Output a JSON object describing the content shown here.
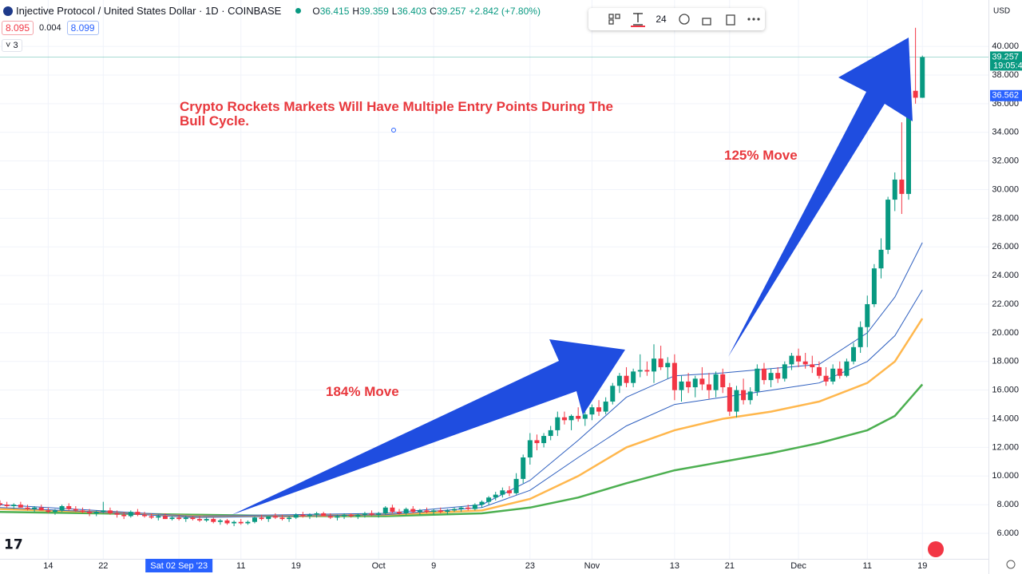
{
  "header": {
    "symbol": "Injective Protocol / United States Dollar · 1D · COINBASE",
    "readout": [
      "O",
      "36.415",
      "H",
      "39.359",
      "L",
      "36.403",
      "C",
      "39.257",
      "+2.842 (+7.80%)"
    ],
    "indicator": [
      "8.095",
      "0.004",
      "8.099"
    ],
    "collapsed_count": "3"
  },
  "toolbar": {
    "font_size": "24"
  },
  "chart_data": {
    "type": "candlestick",
    "currency": "USD",
    "annotations": [
      "Crypto Rockets Markets Will Have Multiple Entry Points During The Bull Cycle.",
      "184% Move",
      "125% Move"
    ],
    "up_color": "#089981",
    "down_color": "#f23645",
    "grid": true,
    "xlim": [
      0,
      143.6
    ],
    "ylim": [
      4.22,
      43.24
    ],
    "yticks": [
      {
        "value": 6,
        "label": "6.000"
      },
      {
        "value": 8,
        "label": "8.000"
      },
      {
        "value": 10,
        "label": "10.000"
      },
      {
        "value": 12,
        "label": "12.000"
      },
      {
        "value": 14,
        "label": "14.000"
      },
      {
        "value": 16,
        "label": "16.000"
      },
      {
        "value": 18,
        "label": "18.000"
      },
      {
        "value": 20,
        "label": "20.000"
      },
      {
        "value": 22,
        "label": "22.000"
      },
      {
        "value": 24,
        "label": "24.000"
      },
      {
        "value": 26,
        "label": "26.000"
      },
      {
        "value": 28,
        "label": "28.000"
      },
      {
        "value": 30,
        "label": "30.000"
      },
      {
        "value": 32,
        "label": "32.000"
      },
      {
        "value": 34,
        "label": "34.000"
      },
      {
        "value": 36,
        "label": "36.000"
      },
      {
        "value": 38,
        "label": "38.000"
      },
      {
        "value": 40,
        "label": "40.000"
      }
    ],
    "xticks": [
      {
        "value": 7,
        "label": "14"
      },
      {
        "value": 15,
        "label": "22"
      },
      {
        "value": 26,
        "label": "Sat 02 Sep '23"
      },
      {
        "value": 35,
        "label": "11"
      },
      {
        "value": 43,
        "label": "19"
      },
      {
        "value": 55,
        "label": "Oct"
      },
      {
        "value": 63,
        "label": "9"
      },
      {
        "value": 77,
        "label": "23"
      },
      {
        "value": 86,
        "label": "Nov"
      },
      {
        "value": 98,
        "label": "13"
      },
      {
        "value": 106,
        "label": "21"
      },
      {
        "value": 116,
        "label": "Dec"
      },
      {
        "value": 126,
        "label": "11"
      },
      {
        "value": 134,
        "label": "19"
      }
    ],
    "last_price": 39.257,
    "countdown": "19:05:4",
    "marked_price": 36.562,
    "ohlc": [
      [
        8.1,
        8.3,
        7.9,
        8.0
      ],
      [
        8.0,
        8.2,
        7.8,
        7.9
      ],
      [
        7.9,
        8.1,
        7.7,
        8.0
      ],
      [
        8.0,
        8.2,
        7.8,
        7.8
      ],
      [
        7.8,
        8.0,
        7.6,
        7.7
      ],
      [
        7.7,
        7.9,
        7.5,
        7.8
      ],
      [
        7.8,
        8.0,
        7.6,
        7.6
      ],
      [
        7.6,
        7.8,
        7.4,
        7.5
      ],
      [
        7.5,
        7.7,
        7.3,
        7.6
      ],
      [
        7.6,
        8.0,
        7.5,
        7.9
      ],
      [
        7.9,
        8.1,
        7.6,
        7.7
      ],
      [
        7.7,
        7.9,
        7.5,
        7.6
      ],
      [
        7.6,
        7.8,
        7.4,
        7.5
      ],
      [
        7.5,
        7.7,
        7.2,
        7.4
      ],
      [
        7.4,
        7.6,
        7.2,
        7.5
      ],
      [
        7.5,
        8.2,
        7.4,
        7.6
      ],
      [
        7.6,
        7.8,
        7.3,
        7.4
      ],
      [
        7.4,
        7.6,
        7.1,
        7.3
      ],
      [
        7.3,
        7.5,
        7.0,
        7.2
      ],
      [
        7.2,
        7.6,
        7.1,
        7.5
      ],
      [
        7.5,
        7.7,
        7.2,
        7.3
      ],
      [
        7.3,
        7.5,
        7.1,
        7.2
      ],
      [
        7.2,
        7.4,
        7.0,
        7.1
      ],
      [
        7.1,
        7.3,
        6.9,
        7.2
      ],
      [
        7.2,
        7.4,
        7.0,
        7.0
      ],
      [
        7.0,
        7.2,
        6.9,
        7.1
      ],
      [
        7.1,
        7.3,
        6.9,
        7.0
      ],
      [
        7.0,
        7.2,
        6.8,
        7.1
      ],
      [
        7.1,
        7.2,
        6.9,
        7.0
      ],
      [
        7.0,
        7.2,
        6.8,
        6.9
      ],
      [
        6.9,
        7.1,
        6.8,
        7.0
      ],
      [
        7.0,
        7.1,
        6.7,
        6.8
      ],
      [
        6.8,
        7.0,
        6.6,
        6.9
      ],
      [
        6.9,
        7.0,
        6.6,
        6.7
      ],
      [
        6.7,
        6.9,
        6.5,
        6.8
      ],
      [
        6.8,
        7.0,
        6.6,
        6.7
      ],
      [
        6.7,
        6.9,
        6.6,
        6.8
      ],
      [
        6.8,
        7.2,
        6.7,
        7.1
      ],
      [
        7.1,
        7.3,
        6.9,
        7.0
      ],
      [
        7.0,
        7.2,
        6.8,
        7.2
      ],
      [
        7.2,
        7.4,
        7.0,
        7.1
      ],
      [
        7.1,
        7.3,
        6.9,
        7.0
      ],
      [
        7.0,
        7.2,
        6.8,
        7.1
      ],
      [
        7.1,
        7.4,
        7.0,
        7.3
      ],
      [
        7.3,
        7.5,
        7.1,
        7.2
      ],
      [
        7.2,
        7.4,
        7.0,
        7.3
      ],
      [
        7.3,
        7.5,
        7.1,
        7.4
      ],
      [
        7.4,
        7.5,
        7.2,
        7.2
      ],
      [
        7.2,
        7.4,
        7.0,
        7.1
      ],
      [
        7.1,
        7.3,
        6.9,
        7.2
      ],
      [
        7.2,
        7.4,
        7.0,
        7.3
      ],
      [
        7.3,
        7.4,
        7.1,
        7.2
      ],
      [
        7.2,
        7.4,
        7.0,
        7.3
      ],
      [
        7.3,
        7.5,
        7.1,
        7.4
      ],
      [
        7.4,
        7.6,
        7.2,
        7.3
      ],
      [
        7.3,
        7.5,
        7.1,
        7.4
      ],
      [
        7.4,
        7.9,
        7.3,
        7.8
      ],
      [
        7.8,
        8.0,
        7.4,
        7.5
      ],
      [
        7.5,
        7.7,
        7.3,
        7.4
      ],
      [
        7.4,
        7.8,
        7.3,
        7.7
      ],
      [
        7.7,
        7.9,
        7.4,
        7.5
      ],
      [
        7.5,
        7.7,
        7.3,
        7.6
      ],
      [
        7.6,
        7.8,
        7.4,
        7.5
      ],
      [
        7.5,
        7.7,
        7.3,
        7.6
      ],
      [
        7.6,
        7.8,
        7.4,
        7.5
      ],
      [
        7.5,
        7.7,
        7.3,
        7.6
      ],
      [
        7.6,
        7.8,
        7.5,
        7.7
      ],
      [
        7.7,
        7.9,
        7.5,
        7.8
      ],
      [
        7.8,
        8.0,
        7.6,
        7.7
      ],
      [
        7.7,
        8.1,
        7.6,
        8.0
      ],
      [
        8.0,
        8.3,
        7.8,
        8.2
      ],
      [
        8.2,
        8.6,
        8.0,
        8.5
      ],
      [
        8.5,
        8.9,
        8.3,
        8.7
      ],
      [
        8.7,
        9.2,
        8.5,
        9.0
      ],
      [
        9.0,
        9.3,
        8.6,
        8.8
      ],
      [
        8.8,
        10.2,
        8.7,
        9.8
      ],
      [
        9.8,
        11.5,
        9.5,
        11.3
      ],
      [
        11.3,
        13.0,
        10.8,
        12.5
      ],
      [
        12.5,
        12.9,
        11.8,
        12.3
      ],
      [
        12.3,
        13.0,
        12.0,
        12.8
      ],
      [
        12.8,
        13.5,
        12.5,
        13.2
      ],
      [
        13.2,
        14.5,
        12.8,
        14.1
      ],
      [
        14.1,
        14.5,
        13.6,
        13.9
      ],
      [
        13.9,
        14.3,
        13.2,
        14.2
      ],
      [
        14.2,
        14.8,
        13.8,
        14.0
      ],
      [
        14.0,
        14.5,
        13.5,
        14.3
      ],
      [
        14.3,
        15.0,
        13.9,
        14.8
      ],
      [
        14.8,
        15.3,
        14.2,
        14.5
      ],
      [
        14.5,
        15.5,
        14.3,
        15.2
      ],
      [
        15.2,
        16.5,
        15.0,
        16.3
      ],
      [
        16.3,
        17.2,
        15.8,
        17.0
      ],
      [
        17.0,
        17.6,
        16.2,
        16.5
      ],
      [
        16.5,
        17.5,
        16.2,
        17.3
      ],
      [
        17.3,
        18.5,
        16.9,
        17.4
      ],
      [
        17.4,
        18.0,
        17.0,
        17.3
      ],
      [
        17.3,
        19.2,
        16.5,
        18.2
      ],
      [
        18.2,
        19.1,
        17.4,
        17.6
      ],
      [
        17.6,
        18.3,
        16.8,
        17.9
      ],
      [
        17.9,
        18.5,
        15.3,
        16.0
      ],
      [
        16.0,
        17.0,
        15.2,
        16.6
      ],
      [
        16.6,
        17.2,
        15.8,
        16.2
      ],
      [
        16.2,
        17.0,
        15.5,
        16.8
      ],
      [
        16.8,
        17.6,
        16.0,
        16.4
      ],
      [
        16.4,
        17.2,
        15.4,
        16.0
      ],
      [
        16.0,
        17.3,
        15.5,
        17.1
      ],
      [
        17.1,
        17.5,
        15.8,
        16.2
      ],
      [
        16.2,
        16.5,
        14.2,
        14.5
      ],
      [
        14.5,
        16.3,
        14.1,
        16.0
      ],
      [
        16.0,
        16.8,
        15.0,
        15.3
      ],
      [
        15.3,
        16.2,
        15.0,
        15.9
      ],
      [
        15.9,
        17.8,
        15.6,
        17.5
      ],
      [
        17.5,
        17.9,
        16.4,
        16.7
      ],
      [
        16.7,
        17.5,
        16.2,
        17.2
      ],
      [
        17.2,
        17.6,
        16.5,
        16.8
      ],
      [
        16.8,
        18.0,
        16.6,
        17.8
      ],
      [
        17.8,
        18.6,
        17.4,
        18.4
      ],
      [
        18.4,
        18.9,
        17.6,
        18.0
      ],
      [
        18.0,
        18.6,
        17.5,
        17.8
      ],
      [
        17.8,
        18.4,
        17.2,
        17.6
      ],
      [
        17.6,
        18.0,
        16.8,
        17.0
      ],
      [
        17.0,
        17.6,
        16.3,
        16.6
      ],
      [
        16.6,
        17.8,
        16.4,
        17.5
      ],
      [
        17.5,
        18.0,
        16.8,
        17.0
      ],
      [
        17.0,
        18.2,
        16.9,
        18.0
      ],
      [
        18.0,
        19.3,
        17.8,
        19.0
      ],
      [
        19.0,
        20.8,
        18.6,
        20.4
      ],
      [
        20.4,
        22.6,
        19.0,
        22.0
      ],
      [
        22.0,
        24.8,
        21.8,
        24.5
      ],
      [
        24.5,
        26.6,
        23.8,
        25.8
      ],
      [
        25.8,
        29.5,
        25.5,
        29.3
      ],
      [
        29.3,
        31.2,
        28.5,
        30.7
      ],
      [
        30.7,
        34.7,
        28.3,
        29.7
      ],
      [
        29.7,
        37.3,
        29.3,
        36.9
      ],
      [
        36.9,
        41.3,
        36.0,
        36.415
      ],
      [
        36.415,
        39.359,
        36.403,
        39.257
      ]
    ],
    "x": [
      0,
      14,
      28,
      42,
      56,
      70,
      77,
      84,
      91,
      98,
      105,
      112,
      119,
      126,
      130,
      134
    ],
    "series": [
      {
        "color": "#4caf50",
        "values": [
          7.5,
          7.4,
          7.3,
          7.2,
          7.2,
          7.4,
          7.8,
          8.5,
          9.5,
          10.4,
          11.0,
          11.6,
          12.3,
          13.2,
          14.2,
          16.4
        ]
      },
      {
        "color": "#ffb74d",
        "values": [
          7.7,
          7.5,
          7.2,
          7.2,
          7.3,
          7.6,
          8.4,
          10.0,
          12.0,
          13.2,
          14.0,
          14.5,
          15.2,
          16.5,
          18.0,
          21.0
        ]
      },
      {
        "color": "#2e5fbf",
        "values": [
          7.8,
          7.5,
          7.1,
          7.2,
          7.3,
          7.8,
          9.0,
          11.3,
          13.5,
          15.0,
          15.5,
          16.0,
          16.5,
          18.0,
          19.8,
          23.0
        ]
      },
      {
        "color": "#2e5fbf",
        "values": [
          8.0,
          7.6,
          7.2,
          7.3,
          7.4,
          8.0,
          9.7,
          12.5,
          15.5,
          17.0,
          17.2,
          17.5,
          17.8,
          20.0,
          22.5,
          26.3
        ]
      }
    ]
  }
}
